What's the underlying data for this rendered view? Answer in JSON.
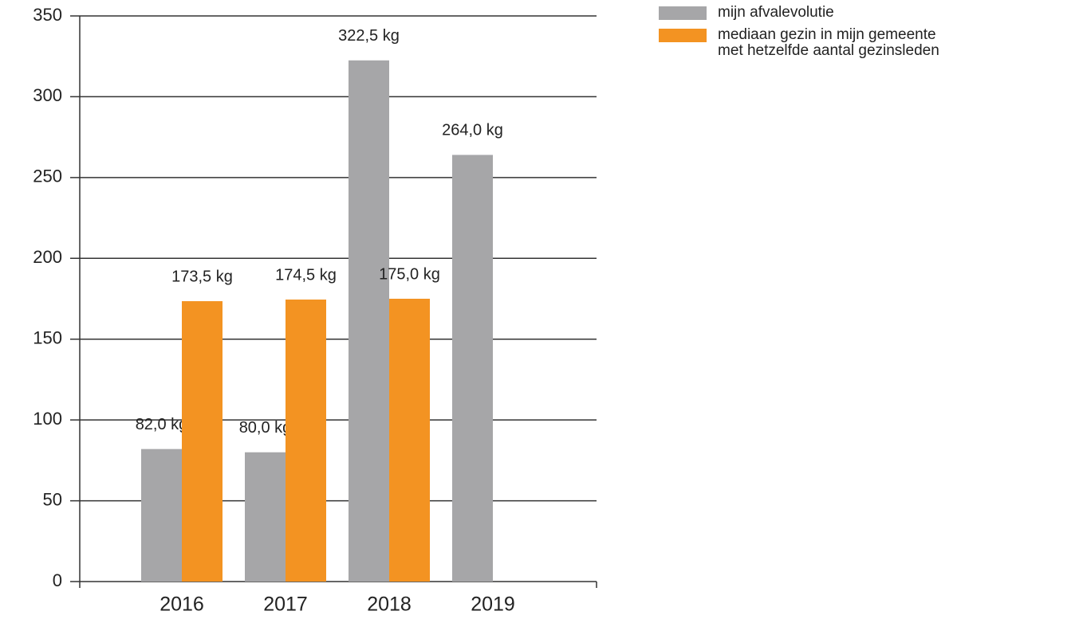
{
  "chart_data": {
    "type": "bar",
    "categories": [
      "2016",
      "2017",
      "2018",
      "2019"
    ],
    "series": [
      {
        "name": "mijn afvalevolutie",
        "color": "#a6a6a8",
        "values": [
          82,
          80,
          322.5,
          264
        ],
        "value_labels": [
          "82,0 kg",
          "80,0 kg",
          "322,5 kg",
          "264,0 kg"
        ]
      },
      {
        "name": "mediaan gezin in mijn gemeente met hetzelfde aantal gezinsleden",
        "color": "#f39322",
        "values": [
          173.5,
          174.5,
          175,
          null
        ],
        "value_labels": [
          "173,5 kg",
          "174,5 kg",
          "175,0 kg",
          null
        ]
      }
    ],
    "ylim": [
      0,
      350
    ],
    "yticks": [
      0,
      50,
      100,
      150,
      200,
      250,
      300,
      350
    ],
    "grid": true,
    "legend": "top-right"
  }
}
